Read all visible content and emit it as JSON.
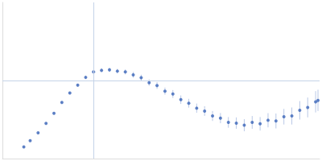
{
  "chart_data": {
    "type": "scatter",
    "color": "#3a64b8",
    "marker": "circle",
    "tick_labels": false,
    "grid": false,
    "xlim": [
      0,
      6
    ],
    "ylim": [
      0,
      2.2
    ],
    "xticks": [],
    "yticks": [],
    "reference_lines": {
      "x": 1.732,
      "y": 1.104
    },
    "x": [
      0.405,
      0.525,
      0.675,
      0.825,
      0.975,
      1.125,
      1.275,
      1.425,
      1.575,
      1.725,
      1.875,
      2.025,
      2.175,
      2.325,
      2.475,
      2.625,
      2.775,
      2.925,
      3.075,
      3.225,
      3.375,
      3.525,
      3.675,
      3.825,
      3.975,
      4.125,
      4.275,
      4.425,
      4.575,
      4.725,
      4.875,
      5.025,
      5.175,
      5.325,
      5.475,
      5.625,
      5.775,
      5.925,
      5.97
    ],
    "values": [
      0.165,
      0.253,
      0.363,
      0.495,
      0.638,
      0.792,
      0.924,
      1.034,
      1.144,
      1.221,
      1.243,
      1.25,
      1.232,
      1.221,
      1.18,
      1.14,
      1.07,
      1.03,
      0.95,
      0.91,
      0.83,
      0.78,
      0.71,
      0.67,
      0.6,
      0.57,
      0.51,
      0.5,
      0.47,
      0.51,
      0.49,
      0.54,
      0.53,
      0.59,
      0.6,
      0.68,
      0.72,
      0.8,
      0.82
    ],
    "errors": [
      0.01,
      0.01,
      0.01,
      0.012,
      0.014,
      0.016,
      0.018,
      0.02,
      0.022,
      0.025,
      0.028,
      0.03,
      0.032,
      0.035,
      0.04,
      0.042,
      0.045,
      0.048,
      0.05,
      0.055,
      0.06,
      0.062,
      0.065,
      0.068,
      0.07,
      0.072,
      0.075,
      0.08,
      0.085,
      0.09,
      0.095,
      0.1,
      0.105,
      0.11,
      0.12,
      0.13,
      0.14,
      0.15,
      0.15
    ]
  }
}
